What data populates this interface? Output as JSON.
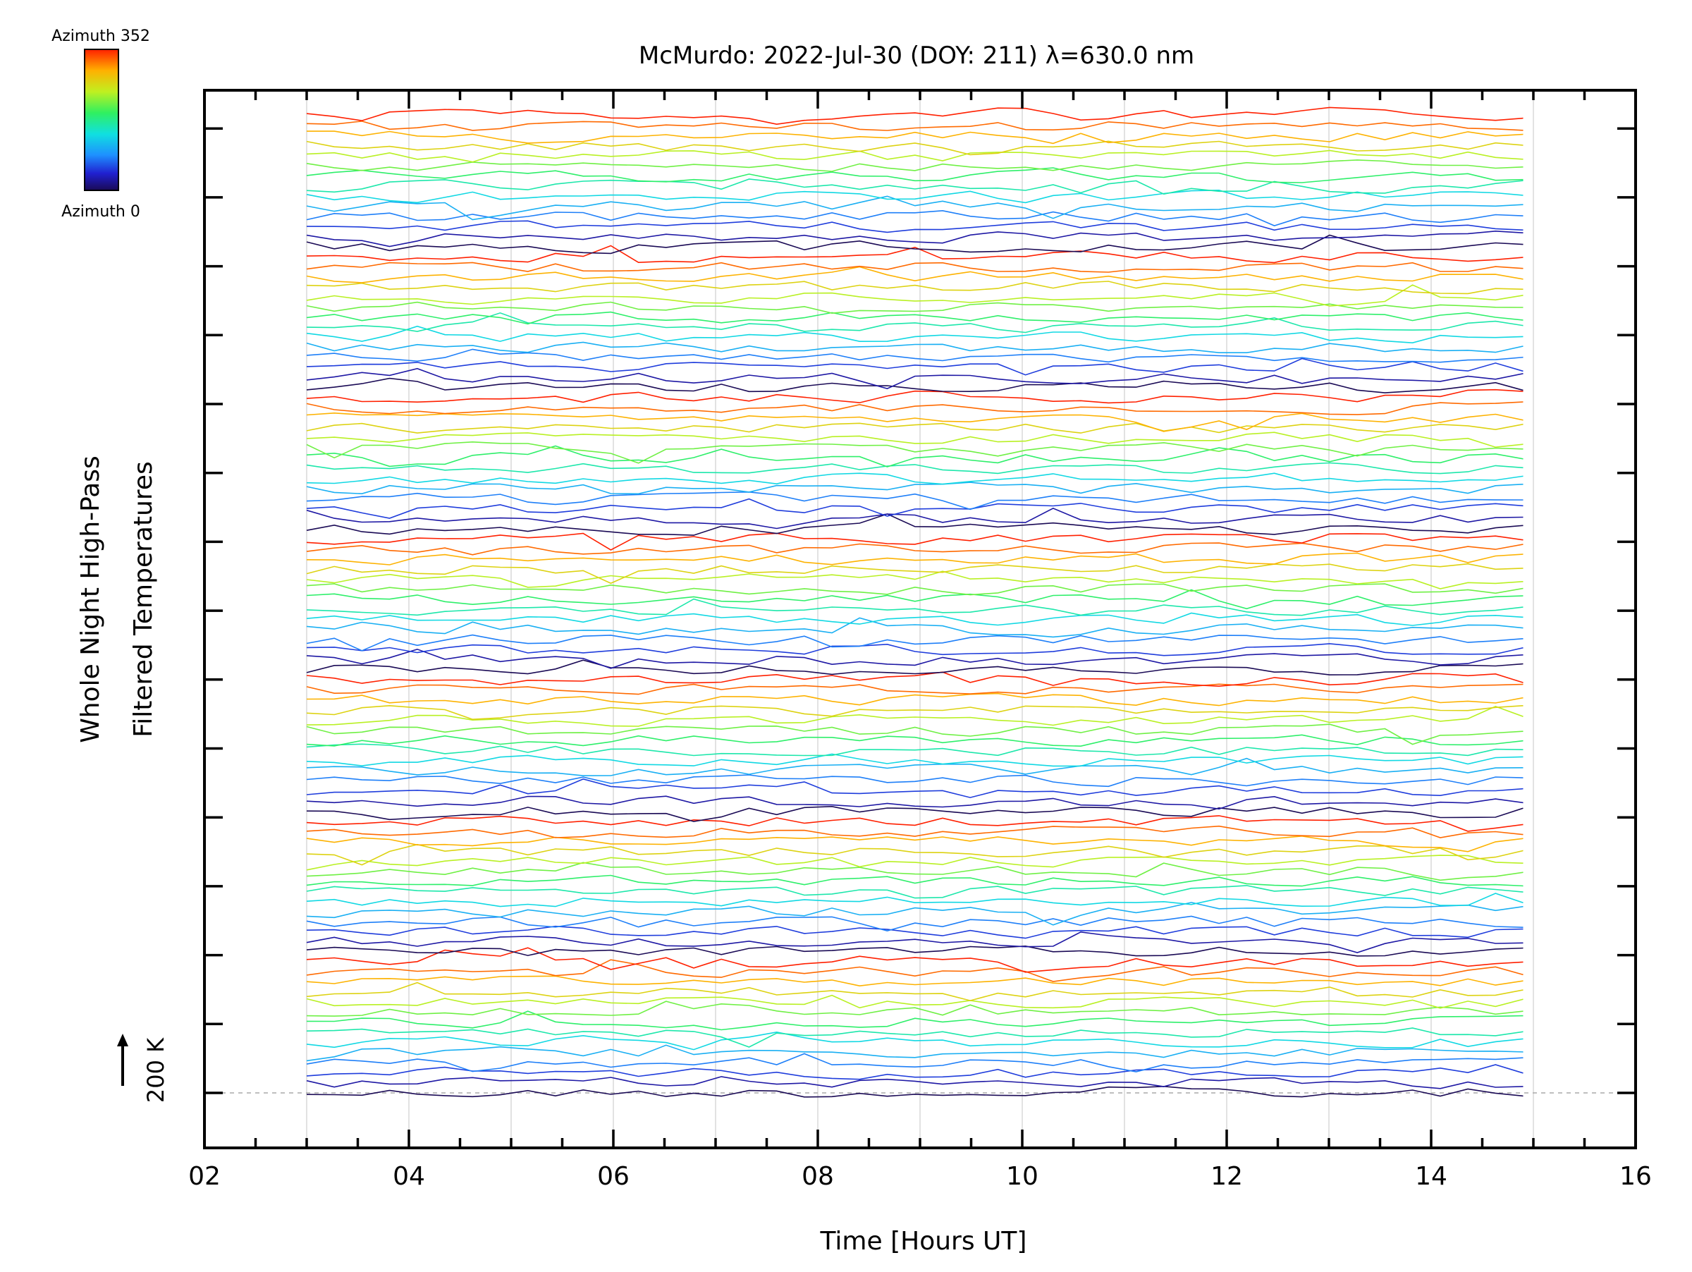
{
  "chart_data": {
    "type": "line",
    "title": "McMurdo: 2022-Jul-30 (DOY: 211) λ=630.0 nm",
    "xlabel": "Time [Hours UT]",
    "ylabel_line1": "Whole Night High-Pass",
    "ylabel_line2": "Filtered Temperatures",
    "scale_label": "200 K",
    "xlim": [
      2,
      16
    ],
    "xticks": [
      "02",
      "04",
      "06",
      "08",
      "10",
      "12",
      "14",
      "16"
    ],
    "grid": true,
    "colorbar": {
      "top_label": "Azimuth 352",
      "bottom_label": "Azimuth 0",
      "min": 0,
      "max": 352
    },
    "time_range": [
      3.0,
      14.9
    ],
    "n_times": 45,
    "series_groups": 7,
    "azimuths_per_group": 14,
    "description_of_data": "Stacked high-pass filtered temperature traces, one per azimuth (0 to 352), color-coded by azimuth; each trace offset vertically"
  }
}
